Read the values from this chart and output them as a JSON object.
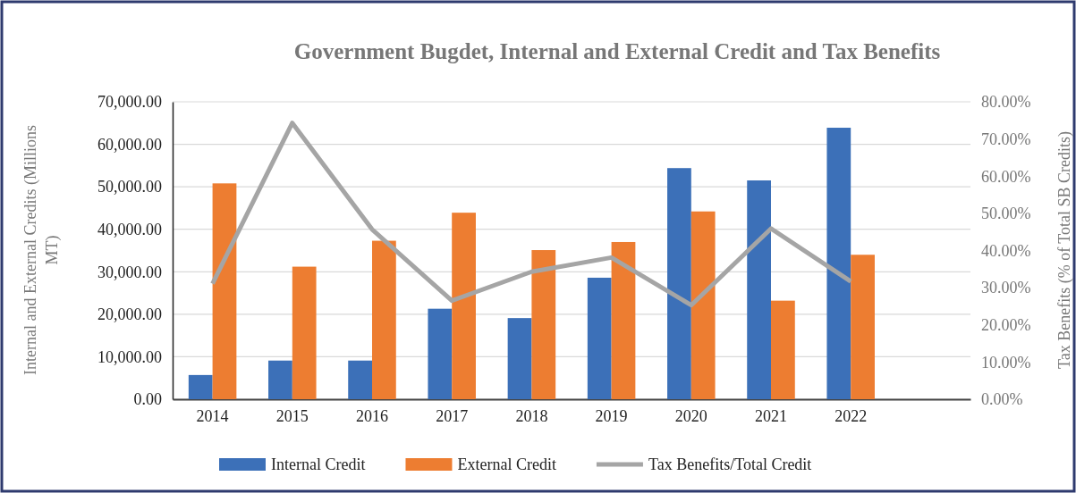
{
  "chart_data": {
    "type": "bar",
    "title": "Government Bugdet, Internal and External Credit and Tax Benefits",
    "ylabel": "Internal and External Credits (Millions MT)",
    "y2label": "Tax Benefits (% of Total SB Credits)",
    "categories": [
      "2014",
      "2015",
      "2016",
      "2017",
      "2018",
      "2019",
      "2020",
      "2021",
      "2022",
      null
    ],
    "series": [
      {
        "name": "Internal Credit",
        "color": "#3c70b8",
        "values": [
          5700,
          9100,
          9100,
          21300,
          19100,
          28600,
          54400,
          51500,
          63900,
          null
        ]
      },
      {
        "name": "External Credit",
        "color": "#ed7d31",
        "values": [
          50800,
          31200,
          37300,
          43900,
          35100,
          37000,
          44200,
          23200,
          34000,
          null
        ]
      },
      {
        "name": "Tax Benefits/Total Credit",
        "type": "line",
        "axis": "y2",
        "color": "#a5a5a5",
        "values": [
          31.1,
          74.3,
          45.7,
          26.5,
          34.3,
          38.1,
          25.3,
          45.9,
          31.7,
          null
        ]
      }
    ],
    "ylim": [
      0,
      70000
    ],
    "yticks": [
      {
        "value": 0,
        "label": "0.00"
      },
      {
        "value": 10000,
        "label": "10,000.00"
      },
      {
        "value": 20000,
        "label": "20,000.00"
      },
      {
        "value": 30000,
        "label": "30,000.00"
      },
      {
        "value": 40000,
        "label": "40,000.00"
      },
      {
        "value": 50000,
        "label": "50,000.00"
      },
      {
        "value": 60000,
        "label": "60,000.00"
      },
      {
        "value": 70000,
        "label": "70,000.00"
      }
    ],
    "y2lim": [
      0,
      80
    ],
    "y2ticks": [
      {
        "value": 0,
        "label": "0.00%"
      },
      {
        "value": 10,
        "label": "10.00%"
      },
      {
        "value": 20,
        "label": "20.00%"
      },
      {
        "value": 30,
        "label": "30.00%"
      },
      {
        "value": 40,
        "label": "40.00%"
      },
      {
        "value": 50,
        "label": "50.00%"
      },
      {
        "value": 60,
        "label": "60.00%"
      },
      {
        "value": 70,
        "label": "70.00%"
      },
      {
        "value": 80,
        "label": "80.00%"
      }
    ],
    "grid": "y",
    "legend": "bottom",
    "marker": "none",
    "line_style": "solid"
  }
}
